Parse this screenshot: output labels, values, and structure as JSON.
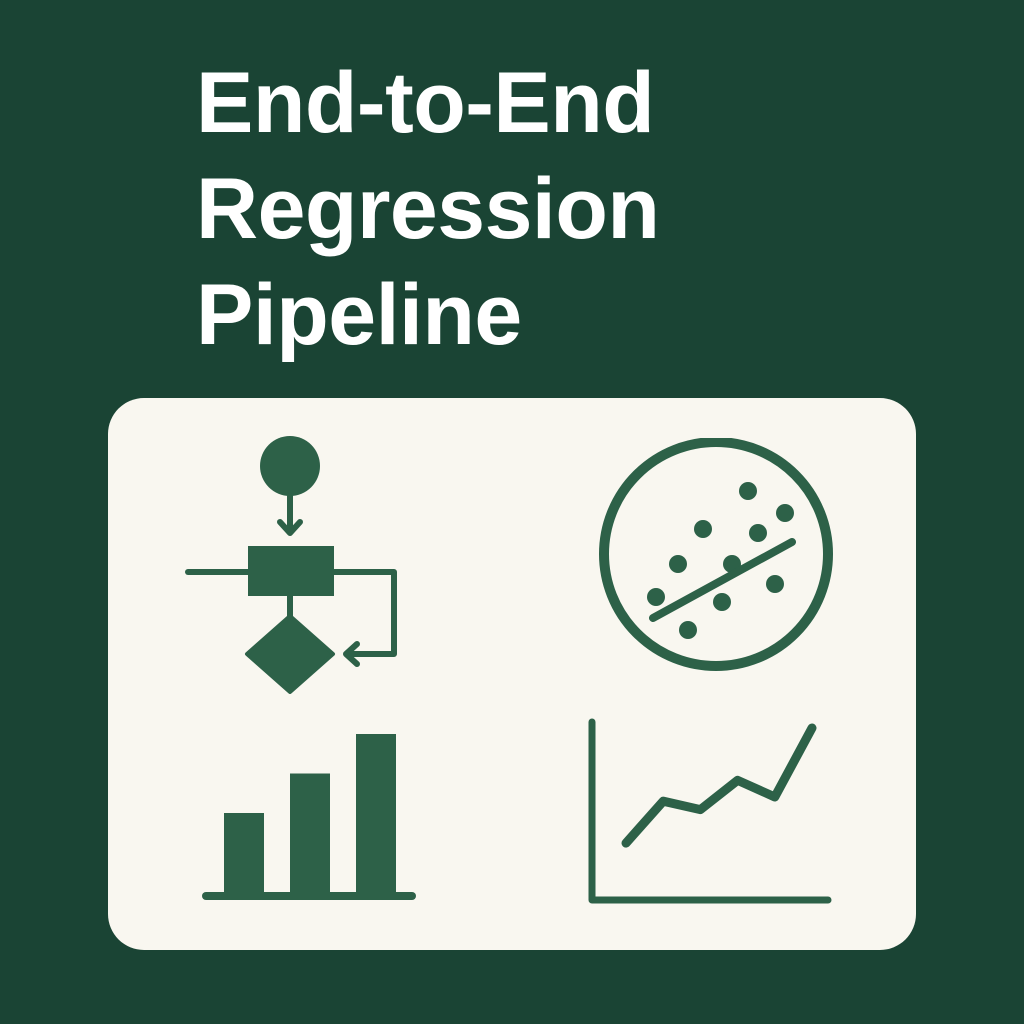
{
  "colors": {
    "background": "#1a4434",
    "title_text": "#ffffff",
    "card": "#f9f7f0",
    "accent": "#2d6148"
  },
  "title": {
    "lines": [
      "End-to-End",
      "Regression",
      "Pipeline"
    ]
  },
  "icons": {
    "top_left": "flowchart-icon",
    "top_right": "scatter-regression-icon",
    "bottom_left": "bar-chart-icon",
    "bottom_right": "line-chart-icon"
  },
  "bar_chart": {
    "values": [
      2,
      3,
      4
    ]
  },
  "line_chart": {
    "values": [
      1,
      3,
      2.6,
      4,
      3.2,
      6.5
    ]
  }
}
